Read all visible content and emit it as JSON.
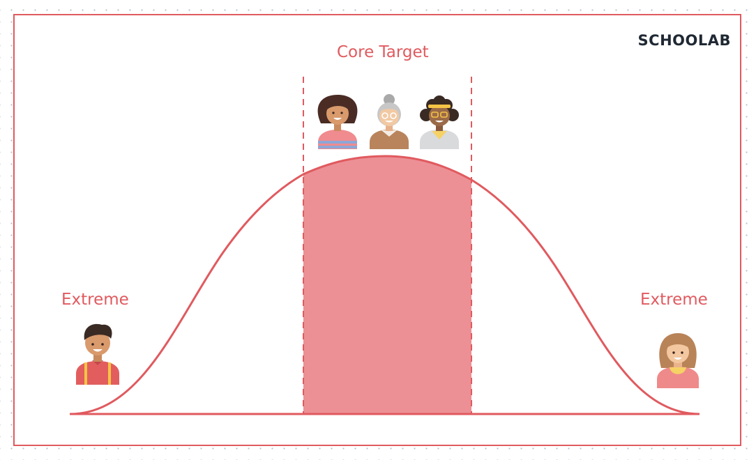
{
  "brand": {
    "logo_text": "SCHOOLAB"
  },
  "labels": {
    "core_target": "Core Target",
    "extreme_left": "Extreme",
    "extreme_right": "Extreme"
  },
  "colors": {
    "accent": "#e05a5f",
    "core_fill": "#ec9095",
    "dot_grid": "#b9c4cc",
    "logo": "#1f2833"
  },
  "people": {
    "core": [
      "woman-dark-hair-avatar",
      "grandmother-avatar",
      "woman-curly-hair-glasses-avatar"
    ],
    "extreme_left": "man-suspenders-avatar",
    "extreme_right": "woman-short-hair-avatar"
  }
}
